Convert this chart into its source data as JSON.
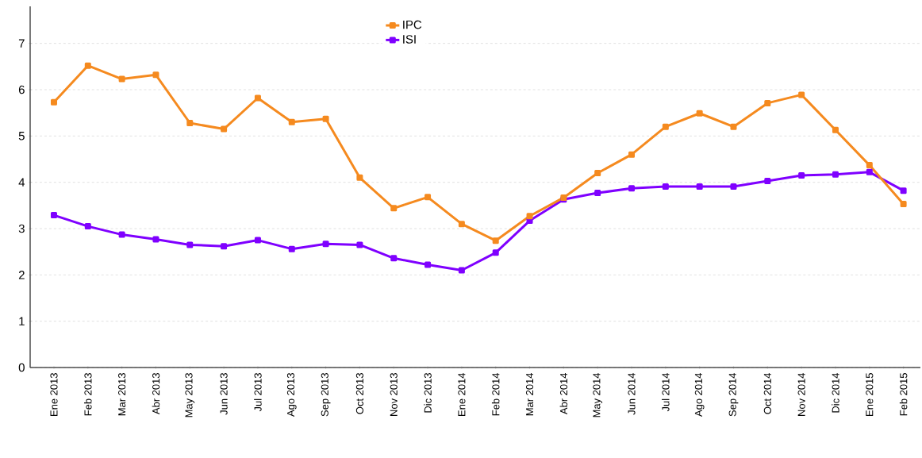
{
  "chart_data": {
    "type": "line",
    "categories": [
      "Ene 2013",
      "Feb 2013",
      "Mar 2013",
      "Abr 2013",
      "May 2013",
      "Jun 2013",
      "Jul 2013",
      "Ago 2013",
      "Sep 2013",
      "Oct 2013",
      "Nov 2013",
      "Dic 2013",
      "Ene 2014",
      "Feb 2014",
      "Mar 2014",
      "Abr 2014",
      "May 2014",
      "Jun 2014",
      "Jul 2014",
      "Ago 2014",
      "Sep 2014",
      "Oct 2014",
      "Nov 2014",
      "Dic 2014",
      "Ene 2015",
      "Feb 2015"
    ],
    "series": [
      {
        "name": "IPC",
        "color": "#f58a1f",
        "values": [
          5.73,
          6.52,
          6.23,
          6.32,
          5.28,
          5.15,
          5.82,
          5.3,
          5.37,
          4.1,
          3.44,
          3.68,
          3.1,
          2.74,
          3.27,
          3.67,
          4.2,
          4.6,
          5.2,
          5.49,
          5.2,
          5.71,
          5.89,
          5.13,
          4.37,
          3.53
        ]
      },
      {
        "name": "ISI",
        "color": "#7f00ff",
        "values": [
          3.29,
          3.05,
          2.87,
          2.77,
          2.65,
          2.62,
          2.75,
          2.56,
          2.67,
          2.65,
          2.36,
          2.22,
          2.1,
          2.48,
          3.17,
          3.63,
          3.77,
          3.87,
          3.91,
          3.91,
          3.91,
          4.03,
          4.15,
          4.17,
          4.22,
          3.82
        ]
      }
    ],
    "ylim": [
      0,
      7.8
    ],
    "yticks": [
      0,
      1,
      2,
      3,
      4,
      5,
      6,
      7
    ],
    "grid": "y",
    "legend": "top",
    "marker": "square",
    "line_style": "solid"
  }
}
